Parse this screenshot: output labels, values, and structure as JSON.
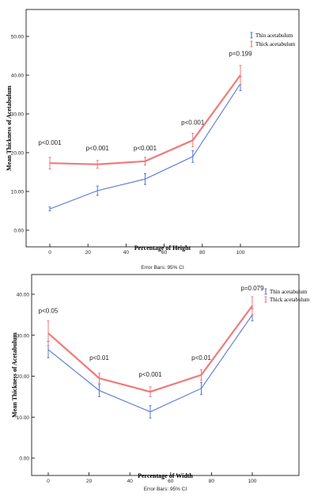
{
  "colors": {
    "thin": "#5b78d6",
    "thick": "#f07a7a",
    "axis": "#000000",
    "text": "#222222"
  },
  "chart_data": [
    {
      "type": "line",
      "xlabel": "Percentage of Height",
      "ylabel": "Mean Thickness of Acetabulum",
      "footnote": "Error Bars: 95% CI",
      "xlim": [
        0,
        100
      ],
      "ylim": [
        0,
        50
      ],
      "x_ticks": [
        "0",
        "20",
        "40",
        "60",
        "80",
        "100"
      ],
      "y_ticks": [
        "0.00",
        "10.00",
        "20.00",
        "30.00",
        "40.00",
        "50.00"
      ],
      "grid": false,
      "legend_position": "top-right",
      "x": [
        0,
        25,
        50,
        75,
        100
      ],
      "series": [
        {
          "name": "Thin acetabulum",
          "color": "#5b78d6",
          "values": [
            5.5,
            10.2,
            13.2,
            19.0,
            37.8
          ],
          "ci_low": [
            5.0,
            9.0,
            11.8,
            17.5,
            36.0
          ],
          "ci_high": [
            6.0,
            11.4,
            14.6,
            20.5,
            39.6
          ]
        },
        {
          "name": "Thick acetabulum",
          "color": "#f07a7a",
          "values": [
            17.3,
            17.0,
            17.8,
            23.2,
            40.0
          ],
          "ci_low": [
            15.8,
            16.0,
            16.8,
            21.5,
            37.5
          ],
          "ci_high": [
            18.8,
            18.0,
            18.8,
            25.0,
            42.5
          ]
        }
      ],
      "annotations": [
        {
          "text": "p<0.001",
          "x": 0,
          "y": 22.0
        },
        {
          "text": "p<0.001",
          "x": 25,
          "y": 20.6
        },
        {
          "text": "p<0.001",
          "x": 50,
          "y": 20.6
        },
        {
          "text": "p<0.001",
          "x": 75,
          "y": 27.2
        },
        {
          "text": "p=0.199",
          "x": 100,
          "y": 45.0
        }
      ]
    },
    {
      "type": "line",
      "xlabel": "Percentage of Width",
      "ylabel": "Mean Thickness of Acetabulum",
      "footnote": "Error Bars: 95% CI",
      "xlim": [
        0,
        100
      ],
      "ylim": [
        0,
        40
      ],
      "x_ticks": [
        "0",
        "20",
        "40",
        "60",
        "80",
        "100"
      ],
      "y_ticks": [
        "0.00",
        "10.00",
        "20.00",
        "30.00",
        "40.00"
      ],
      "grid": false,
      "legend_position": "top-right",
      "x": [
        0,
        25,
        50,
        75,
        100
      ],
      "series": [
        {
          "name": "Thin acetabulum",
          "color": "#5b78d6",
          "values": [
            26.5,
            16.5,
            11.3,
            17.0,
            35.0
          ],
          "ci_low": [
            24.5,
            15.0,
            9.8,
            15.5,
            33.5
          ],
          "ci_high": [
            28.5,
            18.0,
            12.8,
            18.5,
            36.5
          ]
        },
        {
          "name": "Thick acetabulum",
          "color": "#f07a7a",
          "values": [
            30.5,
            19.5,
            16.2,
            20.3,
            37.2
          ],
          "ci_low": [
            27.5,
            18.3,
            15.0,
            19.0,
            35.0
          ],
          "ci_high": [
            33.5,
            20.7,
            17.4,
            21.6,
            39.4
          ]
        }
      ],
      "annotations": [
        {
          "text": "p<0.05",
          "x": 0,
          "y": 35.5
        },
        {
          "text": "p<0.01",
          "x": 25,
          "y": 24.0
        },
        {
          "text": "p<0.001",
          "x": 50,
          "y": 19.9
        },
        {
          "text": "p<0.01",
          "x": 75,
          "y": 24.0
        },
        {
          "text": "p=0.079",
          "x": 100,
          "y": 41.0
        }
      ]
    }
  ]
}
